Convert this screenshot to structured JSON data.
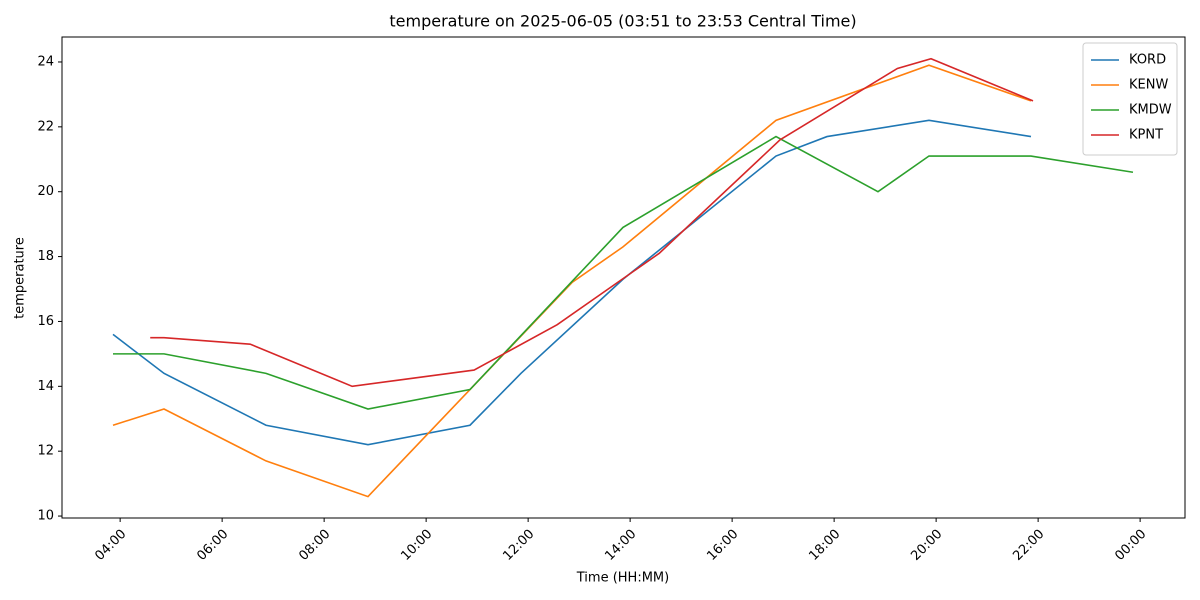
{
  "chart_data": {
    "type": "line",
    "title": "temperature on 2025-06-05 (03:51 to 23:53 Central Time)",
    "x_label": "Time (HH:MM)",
    "y_label": "temperature",
    "xlim": [
      2.86,
      24.88
    ],
    "ylim": [
      9.94,
      24.77
    ],
    "xticks": [
      {
        "value": 4,
        "label": "04:00"
      },
      {
        "value": 6,
        "label": "06:00"
      },
      {
        "value": 8,
        "label": "08:00"
      },
      {
        "value": 10,
        "label": "10:00"
      },
      {
        "value": 12,
        "label": "12:00"
      },
      {
        "value": 14,
        "label": "14:00"
      },
      {
        "value": 16,
        "label": "16:00"
      },
      {
        "value": 18,
        "label": "18:00"
      },
      {
        "value": 20,
        "label": "20:00"
      },
      {
        "value": 22,
        "label": "22:00"
      },
      {
        "value": 24,
        "label": "00:00"
      }
    ],
    "yticks": [
      10,
      12,
      14,
      16,
      18,
      20,
      22,
      24
    ],
    "legend": "upper right",
    "grid": false,
    "series": [
      {
        "name": "KORD",
        "color": "#1f77b4",
        "x": [
          3.86,
          4.86,
          6.86,
          8.86,
          10.86,
          11.86,
          13.86,
          16.86,
          17.86,
          19.86,
          21.86
        ],
        "values": [
          15.6,
          14.4,
          12.8,
          12.2,
          12.8,
          14.4,
          17.3,
          21.1,
          21.7,
          22.2,
          21.7
        ]
      },
      {
        "name": "KENW",
        "color": "#ff7f0e",
        "x": [
          3.86,
          4.86,
          6.86,
          8.86,
          10.86,
          12.86,
          13.86,
          16.86,
          19.86,
          21.86
        ],
        "values": [
          12.8,
          13.3,
          11.7,
          10.6,
          13.9,
          17.2,
          18.3,
          22.2,
          23.9,
          22.8
        ]
      },
      {
        "name": "KMDW",
        "color": "#2ca02c",
        "x": [
          3.86,
          4.86,
          6.86,
          8.86,
          10.86,
          13.86,
          16.86,
          18.86,
          19.86,
          21.86,
          23.86
        ],
        "values": [
          15.0,
          15.0,
          14.4,
          13.3,
          13.9,
          18.9,
          21.7,
          20.0,
          21.1,
          21.1,
          20.6
        ]
      },
      {
        "name": "KPNT",
        "color": "#d62728",
        "x": [
          4.59,
          4.86,
          6.55,
          8.55,
          10.94,
          12.57,
          14.57,
          16.94,
          19.24,
          19.9,
          21.9
        ],
        "values": [
          15.5,
          15.5,
          15.3,
          14.0,
          14.5,
          15.9,
          18.1,
          21.6,
          23.8,
          24.1,
          22.8
        ]
      }
    ]
  }
}
